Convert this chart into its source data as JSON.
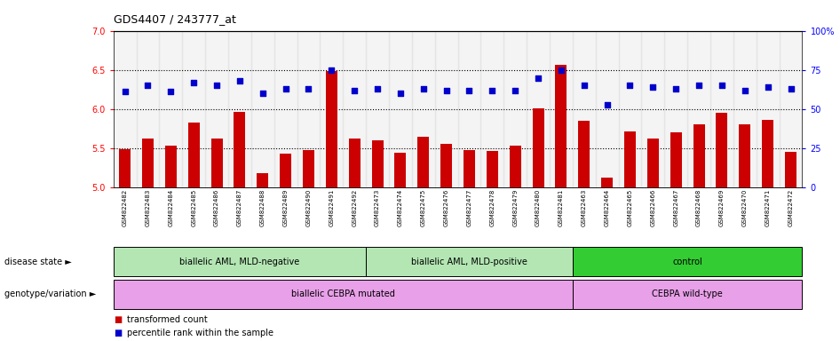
{
  "title": "GDS4407 / 243777_at",
  "samples": [
    "GSM822482",
    "GSM822483",
    "GSM822484",
    "GSM822485",
    "GSM822486",
    "GSM822487",
    "GSM822488",
    "GSM822489",
    "GSM822490",
    "GSM822491",
    "GSM822492",
    "GSM822473",
    "GSM822474",
    "GSM822475",
    "GSM822476",
    "GSM822477",
    "GSM822478",
    "GSM822479",
    "GSM822480",
    "GSM822481",
    "GSM822463",
    "GSM822464",
    "GSM822465",
    "GSM822466",
    "GSM822467",
    "GSM822468",
    "GSM822469",
    "GSM822470",
    "GSM822471",
    "GSM822472"
  ],
  "bar_values": [
    5.49,
    5.62,
    5.53,
    5.83,
    5.62,
    5.97,
    5.18,
    5.43,
    5.48,
    6.49,
    5.62,
    5.6,
    5.44,
    5.65,
    5.56,
    5.48,
    5.47,
    5.53,
    6.01,
    6.57,
    5.85,
    5.13,
    5.72,
    5.63,
    5.7,
    5.81,
    5.95,
    5.81,
    5.86,
    5.46
  ],
  "dot_values": [
    61,
    65,
    61,
    67,
    65,
    68,
    60,
    63,
    63,
    75,
    62,
    63,
    60,
    63,
    62,
    62,
    62,
    62,
    70,
    75,
    65,
    53,
    65,
    64,
    63,
    65,
    65,
    62,
    64,
    63
  ],
  "ylim_left": [
    5.0,
    7.0
  ],
  "ylim_right": [
    0,
    100
  ],
  "yticks_left": [
    5.0,
    5.5,
    6.0,
    6.5,
    7.0
  ],
  "yticks_right": [
    0,
    25,
    50,
    75,
    100
  ],
  "ytick_labels_right": [
    "0",
    "25",
    "50",
    "75",
    "100%"
  ],
  "bar_color": "#cc0000",
  "dot_color": "#0000cc",
  "group_boundaries_disease": [
    0,
    11,
    20,
    30
  ],
  "group_labels_disease": [
    "biallelic AML, MLD-negative",
    "biallelic AML, MLD-positive",
    "control"
  ],
  "group_colors_disease": [
    "#b3e6b3",
    "#b3e6b3",
    "#33cc33"
  ],
  "group_boundaries_genotype": [
    0,
    20,
    30
  ],
  "group_labels_genotype": [
    "biallelic CEBPA mutated",
    "CEBPA wild-type"
  ],
  "group_colors_genotype": [
    "#e8a0e8",
    "#e8a0e8"
  ],
  "legend_red_label": "transformed count",
  "legend_blue_label": "percentile rank within the sample",
  "disease_state_label": "disease state",
  "genotype_label": "genotype/variation",
  "xtick_bg_color": "#d4d4d4"
}
